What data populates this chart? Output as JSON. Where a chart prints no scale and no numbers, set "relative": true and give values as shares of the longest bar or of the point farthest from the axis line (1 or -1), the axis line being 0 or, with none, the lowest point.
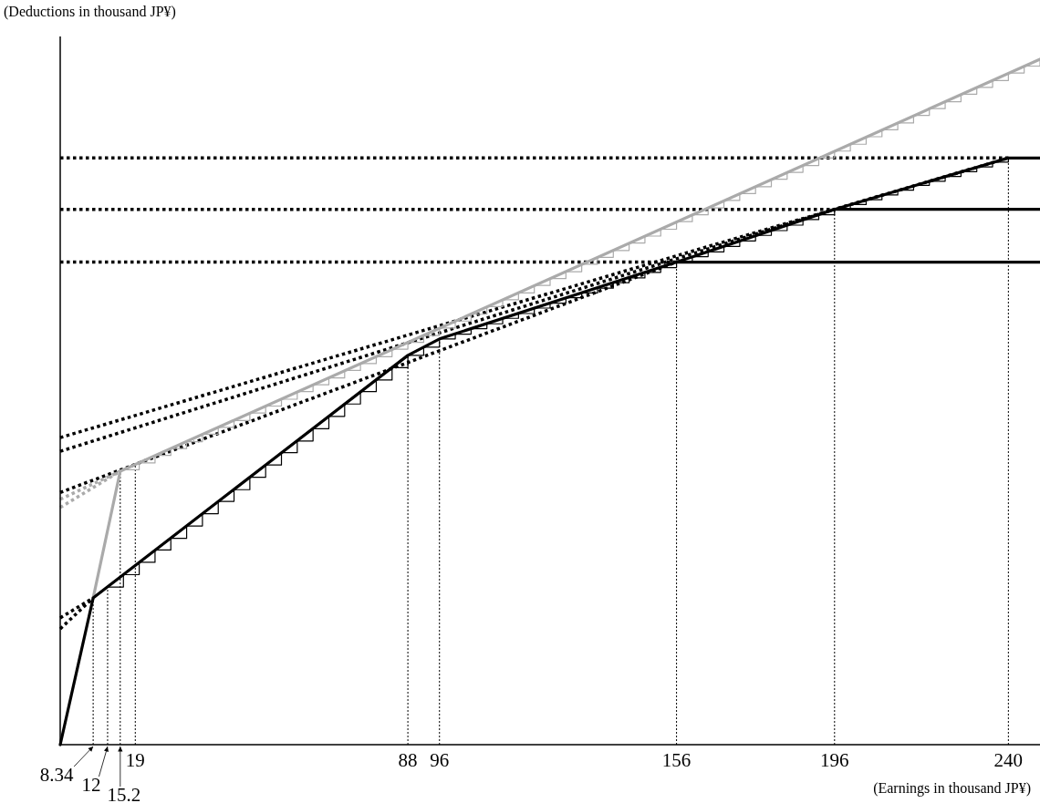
{
  "chart_data": {
    "type": "line",
    "relative": true,
    "xlabel": "(Earnings in thousand JP¥)",
    "ylabel": "(Deductions in thousand JP¥)",
    "xlim": [
      0,
      248
    ],
    "xticks": [
      19,
      88,
      96,
      156,
      196,
      240
    ],
    "annotations": [
      {
        "text": "8.34",
        "x": 8.34,
        "y": 0
      },
      {
        "text": "12",
        "x": 12,
        "y": 0
      },
      {
        "text": "15.2",
        "x": 15.2,
        "y": 0
      }
    ],
    "series": [
      {
        "color": "#000000",
        "line_style": "dotted",
        "x": [
          0,
          240
        ],
        "values": [
          0.856,
          0.856
        ]
      },
      {
        "color": "#000000",
        "line_style": "dotted",
        "x": [
          0,
          196
        ],
        "values": [
          0.781,
          0.781
        ]
      },
      {
        "color": "#000000",
        "line_style": "dotted",
        "x": [
          0,
          156
        ],
        "values": [
          0.704,
          0.704
        ]
      },
      {
        "color": "#000000",
        "line_style": "dotted",
        "x": [
          0,
          240
        ],
        "values": [
          0.448,
          0.856
        ]
      },
      {
        "color": "#000000",
        "line_style": "dotted",
        "x": [
          0,
          196
        ],
        "values": [
          0.428,
          0.781
        ]
      },
      {
        "color": "#000000",
        "line_style": "dotted",
        "x": [
          0,
          156
        ],
        "values": [
          0.368,
          0.704
        ]
      },
      {
        "color": "#000000",
        "line_style": "dotted",
        "x": [
          0,
          8.34
        ],
        "values": [
          0.185,
          0.214
        ]
      },
      {
        "color": "#000000",
        "line_style": "dotted",
        "x": [
          0,
          8.34
        ],
        "values": [
          0.169,
          0.214
        ]
      },
      {
        "color": "#aaaaaa",
        "line_style": "dotted",
        "x": [
          0,
          15.2
        ],
        "values": [
          0.358,
          0.399
        ]
      },
      {
        "color": "#aaaaaa",
        "line_style": "dotted",
        "x": [
          0,
          15.2
        ],
        "values": [
          0.346,
          0.399
        ]
      },
      {
        "color": "#000000",
        "line_style": "dashed",
        "x": [
          8.34,
          8.34
        ],
        "values": [
          0,
          0.214
        ]
      },
      {
        "color": "#000000",
        "line_style": "dashed",
        "x": [
          12,
          12
        ],
        "values": [
          0,
          0.23
        ]
      },
      {
        "color": "#000000",
        "line_style": "dashed",
        "x": [
          15.2,
          15.2
        ],
        "values": [
          0,
          0.399
        ]
      },
      {
        "color": "#000000",
        "line_style": "dashed",
        "x": [
          19,
          19
        ],
        "values": [
          0,
          0.409
        ]
      },
      {
        "color": "#000000",
        "line_style": "dashed",
        "x": [
          88,
          88
        ],
        "values": [
          0,
          0.568
        ]
      },
      {
        "color": "#000000",
        "line_style": "dashed",
        "x": [
          96,
          96
        ],
        "values": [
          0,
          0.592
        ]
      },
      {
        "color": "#000000",
        "line_style": "dashed",
        "x": [
          156,
          156
        ],
        "values": [
          0,
          0.704
        ]
      },
      {
        "color": "#000000",
        "line_style": "dashed",
        "x": [
          196,
          196
        ],
        "values": [
          0,
          0.781
        ]
      },
      {
        "color": "#000000",
        "line_style": "dashed",
        "x": [
          240,
          240
        ],
        "values": [
          0,
          0.856
        ]
      },
      {
        "type": "step",
        "color": "#000000",
        "line_style": "solid",
        "x": [
          12,
          16,
          20,
          24,
          28,
          32,
          36,
          40,
          44,
          48,
          52,
          56,
          60,
          64,
          68,
          72,
          76,
          80,
          84,
          88,
          92,
          96,
          100,
          104,
          108,
          112,
          116,
          120,
          124,
          128,
          132,
          136,
          140,
          144,
          148,
          152,
          156,
          160,
          164,
          168,
          172,
          176,
          180,
          184,
          188,
          192,
          196,
          200,
          204,
          208,
          212,
          216,
          220,
          224,
          228,
          232,
          236,
          240
        ],
        "values": [
          0.23,
          0.248,
          0.266,
          0.284,
          0.301,
          0.319,
          0.337,
          0.355,
          0.372,
          0.39,
          0.408,
          0.426,
          0.443,
          0.461,
          0.479,
          0.497,
          0.515,
          0.532,
          0.55,
          0.568,
          0.58,
          0.592,
          0.599,
          0.607,
          0.614,
          0.622,
          0.629,
          0.637,
          0.644,
          0.652,
          0.659,
          0.666,
          0.674,
          0.681,
          0.689,
          0.696,
          0.704,
          0.712,
          0.719,
          0.727,
          0.735,
          0.743,
          0.75,
          0.758,
          0.766,
          0.773,
          0.781,
          0.788,
          0.795,
          0.802,
          0.809,
          0.816,
          0.822,
          0.829,
          0.836,
          0.843,
          0.85,
          0.856
        ]
      },
      {
        "type": "step",
        "color": "#aaaaaa",
        "line_style": "solid",
        "x": [
          16,
          20,
          24,
          28,
          32,
          36,
          40,
          44,
          48,
          52,
          56,
          60,
          64,
          68,
          72,
          76,
          80,
          84,
          88,
          92,
          96,
          100,
          104,
          108,
          112,
          116,
          120,
          124,
          128,
          132,
          136,
          140,
          144,
          148,
          152,
          156,
          160,
          164,
          168,
          172,
          176,
          180,
          184,
          188,
          192,
          196,
          200,
          204,
          208,
          212,
          216,
          220,
          224,
          228,
          232,
          236,
          240,
          244,
          248
        ],
        "values": [
          0.401,
          0.411,
          0.422,
          0.432,
          0.442,
          0.453,
          0.463,
          0.473,
          0.484,
          0.494,
          0.504,
          0.515,
          0.525,
          0.535,
          0.546,
          0.556,
          0.566,
          0.577,
          0.587,
          0.597,
          0.608,
          0.618,
          0.628,
          0.639,
          0.649,
          0.659,
          0.67,
          0.68,
          0.69,
          0.701,
          0.711,
          0.721,
          0.732,
          0.742,
          0.752,
          0.763,
          0.773,
          0.783,
          0.794,
          0.804,
          0.814,
          0.825,
          0.835,
          0.845,
          0.856,
          0.866,
          0.876,
          0.887,
          0.897,
          0.907,
          0.918,
          0.928,
          0.938,
          0.949,
          0.959,
          0.969,
          0.98,
          0.99,
          1.0
        ]
      },
      {
        "color": "#000000",
        "line_style": "solid",
        "x": [
          156,
          248
        ],
        "values": [
          0.704,
          0.704
        ]
      },
      {
        "color": "#000000",
        "line_style": "solid",
        "x": [
          196,
          248
        ],
        "values": [
          0.781,
          0.781
        ]
      },
      {
        "color": "#aaaaaa",
        "line_style": "solid",
        "x": [
          8.34,
          15.2,
          248
        ],
        "values": [
          0.214,
          0.399,
          1.0
        ]
      },
      {
        "color": "#000000",
        "line_style": "solid",
        "x": [
          0,
          8.34,
          88,
          96,
          156,
          196,
          240,
          248
        ],
        "values": [
          0,
          0.214,
          0.568,
          0.592,
          0.704,
          0.781,
          0.856,
          0.856
        ]
      }
    ]
  }
}
